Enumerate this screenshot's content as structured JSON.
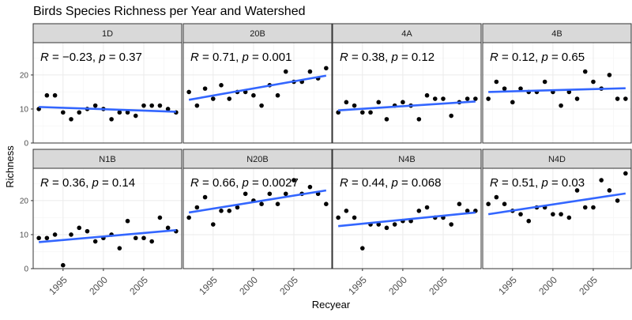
{
  "chart_data": {
    "type": "scatter",
    "title": "Birds Species Richness per Year and Watershed",
    "xlabel": "Recyear",
    "ylabel": "Richness",
    "xlim": [
      1991.3,
      2009.7
    ],
    "ylim": [
      0,
      29.5
    ],
    "x_ticks": [
      1995,
      2000,
      2005
    ],
    "x_tick_labels": [
      "1995",
      "2000",
      "2005"
    ],
    "y_ticks": [
      0,
      10,
      20
    ],
    "y_tick_labels": [
      "0",
      "10",
      "20"
    ],
    "grid": true,
    "colors": {
      "points": "#000000",
      "fit_line": "#3366ff",
      "strip": "#d9d9d9",
      "grid_major": "#ebebeb",
      "grid_minor": "#f5f5f5",
      "panel_border": "#333333"
    },
    "panels": [
      {
        "name": "1D",
        "annotation": {
          "r_label": "R",
          "r_value": "= −0.23,",
          "p_label": "p",
          "p_value": "= 0.37"
        },
        "x": [
          1992,
          1993,
          1994,
          1995,
          1996,
          1997,
          1998,
          1999,
          2000,
          2001,
          2002,
          2003,
          2004,
          2005,
          2006,
          2007,
          2008,
          2009
        ],
        "y": [
          10,
          14,
          14,
          9,
          7,
          9,
          10,
          11,
          10,
          7,
          9,
          9,
          8,
          11,
          11,
          11,
          10,
          9
        ],
        "fit": [
          [
            1992,
            10.6
          ],
          [
            2009,
            9.2
          ]
        ]
      },
      {
        "name": "20B",
        "annotation": {
          "r_label": "R",
          "r_value": "= 0.71,",
          "p_label": "p",
          "p_value": "= 0.001"
        },
        "x": [
          1992,
          1993,
          1994,
          1995,
          1996,
          1997,
          1998,
          1999,
          2000,
          2001,
          2002,
          2003,
          2004,
          2005,
          2006,
          2007,
          2008,
          2009
        ],
        "y": [
          15,
          11,
          16,
          13,
          17,
          13,
          15,
          15,
          14,
          11,
          17,
          14,
          21,
          18,
          18,
          21,
          19,
          22
        ],
        "fit": [
          [
            1992,
            12.7
          ],
          [
            2009,
            19.8
          ]
        ]
      },
      {
        "name": "4A",
        "annotation": {
          "r_label": "R",
          "r_value": "= 0.38,",
          "p_label": "p",
          "p_value": "= 0.12"
        },
        "x": [
          1992,
          1993,
          1994,
          1995,
          1996,
          1997,
          1998,
          1999,
          2000,
          2001,
          2002,
          2003,
          2004,
          2005,
          2006,
          2007,
          2008,
          2009
        ],
        "y": [
          9,
          12,
          11,
          9,
          9,
          12,
          7,
          11,
          12,
          11,
          7,
          14,
          13,
          13,
          8,
          12,
          13,
          13
        ],
        "fit": [
          [
            1992,
            9.6
          ],
          [
            2009,
            12.2
          ]
        ]
      },
      {
        "name": "4B",
        "annotation": {
          "r_label": "R",
          "r_value": "= 0.12,",
          "p_label": "p",
          "p_value": "= 0.65"
        },
        "x": [
          1992,
          1993,
          1994,
          1995,
          1996,
          1997,
          1998,
          1999,
          2000,
          2001,
          2002,
          2003,
          2004,
          2005,
          2006,
          2007,
          2008,
          2009
        ],
        "y": [
          13,
          18,
          16,
          12,
          16,
          15,
          15,
          18,
          15,
          11,
          15,
          13,
          21,
          18,
          16,
          20,
          13,
          13
        ],
        "fit": [
          [
            1992,
            15.0
          ],
          [
            2009,
            16.1
          ]
        ]
      },
      {
        "name": "N1B",
        "annotation": {
          "r_label": "R",
          "r_value": "= 0.36,",
          "p_label": "p",
          "p_value": "= 0.14"
        },
        "x": [
          1992,
          1993,
          1994,
          1995,
          1996,
          1997,
          1998,
          1999,
          2000,
          2001,
          2002,
          2003,
          2004,
          2005,
          2006,
          2007,
          2008,
          2009
        ],
        "y": [
          9,
          9,
          10,
          1,
          10,
          12,
          11,
          8,
          9,
          10,
          6,
          14,
          9,
          9,
          8,
          15,
          12,
          11
        ],
        "fit": [
          [
            1992,
            7.8
          ],
          [
            2009,
            11.3
          ]
        ]
      },
      {
        "name": "N20B",
        "annotation": {
          "r_label": "R",
          "r_value": "= 0.66,",
          "p_label": "p",
          "p_value": "= 0.0027"
        },
        "x": [
          1992,
          1993,
          1994,
          1995,
          1996,
          1997,
          1998,
          1999,
          2000,
          2001,
          2002,
          2003,
          2004,
          2005,
          2006,
          2007,
          2008,
          2009
        ],
        "y": [
          15,
          18,
          21,
          13,
          17,
          17,
          18,
          22,
          20,
          19,
          22,
          19,
          22,
          26,
          22,
          24,
          22,
          19
        ],
        "fit": [
          [
            1992,
            16.5
          ],
          [
            2009,
            23.0
          ]
        ]
      },
      {
        "name": "N4B",
        "annotation": {
          "r_label": "R",
          "r_value": "= 0.44,",
          "p_label": "p",
          "p_value": "= 0.068"
        },
        "x": [
          1992,
          1993,
          1994,
          1995,
          1996,
          1997,
          1998,
          1999,
          2000,
          2001,
          2002,
          2003,
          2004,
          2005,
          2006,
          2007,
          2008,
          2009
        ],
        "y": [
          15,
          17,
          15,
          6,
          13,
          13,
          12,
          13,
          14,
          14,
          17,
          18,
          15,
          15,
          13,
          19,
          17,
          17
        ],
        "fit": [
          [
            1992,
            12.5
          ],
          [
            2009,
            16.5
          ]
        ]
      },
      {
        "name": "N4D",
        "annotation": {
          "r_label": "R",
          "r_value": "= 0.51,",
          "p_label": "p",
          "p_value": "= 0.03"
        },
        "x": [
          1992,
          1993,
          1994,
          1995,
          1996,
          1997,
          1998,
          1999,
          2000,
          2001,
          2002,
          2003,
          2004,
          2005,
          2006,
          2007,
          2008,
          2009
        ],
        "y": [
          19,
          21,
          19,
          17,
          16,
          14,
          18,
          18,
          16,
          16,
          15,
          23,
          18,
          18,
          26,
          23,
          20,
          28
        ],
        "fit": [
          [
            1992,
            16.0
          ],
          [
            2009,
            22.1
          ]
        ]
      }
    ]
  }
}
